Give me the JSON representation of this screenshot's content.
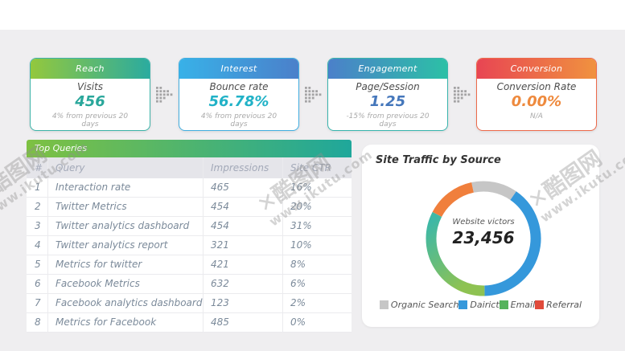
{
  "watermark": {
    "brand": "✕酷图网",
    "site": "www.ikutu.com"
  },
  "kpi_cards": [
    {
      "title": "Reach",
      "label": "Visits",
      "value": "456",
      "delta": "4%  from previous 20 days",
      "value_color": "#2aa79b",
      "header_from": "#93c83d",
      "header_to": "#2bab9f",
      "border": "#3db3a8"
    },
    {
      "title": "Interest",
      "label": "Bounce rate",
      "value": "56.78%",
      "delta": "4%  from previous 20 days",
      "value_color": "#21b2c7",
      "header_from": "#38b1e8",
      "header_to": "#4b80ca",
      "border": "#41aee0"
    },
    {
      "title": "Engagement",
      "label": "Page/Session",
      "value": "1.25",
      "delta": "-15%  from previous 20 days",
      "value_color": "#4577bb",
      "header_from": "#4b80ca",
      "header_to": "#2cc0a6",
      "border": "#38b5ad"
    },
    {
      "title": "Conversion",
      "label": "Conversion Rate",
      "value": "0.00%",
      "delta": "N/A",
      "value_color": "#ee8a3e",
      "header_from": "#e84553",
      "header_to": "#f0923f",
      "border": "#ed6a4b"
    }
  ],
  "table": {
    "title": "Top Queries",
    "columns": [
      "#",
      "Query",
      "Impressions",
      "Site CTR"
    ],
    "rows": [
      [
        "1",
        "Interaction rate",
        "465",
        "16%"
      ],
      [
        "2",
        "Twitter Metrics",
        "454",
        "20%"
      ],
      [
        "3",
        "Twitter analytics dashboard",
        "454",
        "31%"
      ],
      [
        "4",
        "Twitter analytics report",
        "321",
        "10%"
      ],
      [
        "5",
        "Metrics for twitter",
        "421",
        "8%"
      ],
      [
        "6",
        "Facebook Metrics",
        "632",
        "6%"
      ],
      [
        "7",
        "Facebook analytics dashboard",
        "123",
        "2%"
      ],
      [
        "8",
        "Metrics for Facebook",
        "485",
        "0%"
      ]
    ]
  },
  "chart": {
    "title": "Site Traffic by Source",
    "center_label": "Website victors",
    "center_value": "23,456"
  },
  "chart_data": {
    "type": "pie",
    "donut": true,
    "title": "Site Traffic by Source",
    "center_label": "Website victors",
    "center_value": 23456,
    "start_angle_deg": -12,
    "legend_position": "bottom",
    "segments": [
      {
        "label": "Organic Search",
        "value": 13,
        "color": "#c6c6c6",
        "legend_color": "#c6c6c6"
      },
      {
        "label": "Dairict",
        "value": 40,
        "color": "#3598db",
        "legend_color": "#3598db"
      },
      {
        "label": "Email",
        "value": 33,
        "color": "#8ec252",
        "color_end": "#3eb8a6",
        "legend_color": "#56b35c"
      },
      {
        "label": "Referral",
        "value": 14,
        "color": "#f07f3c",
        "legend_color": "#e04b3b"
      }
    ]
  }
}
